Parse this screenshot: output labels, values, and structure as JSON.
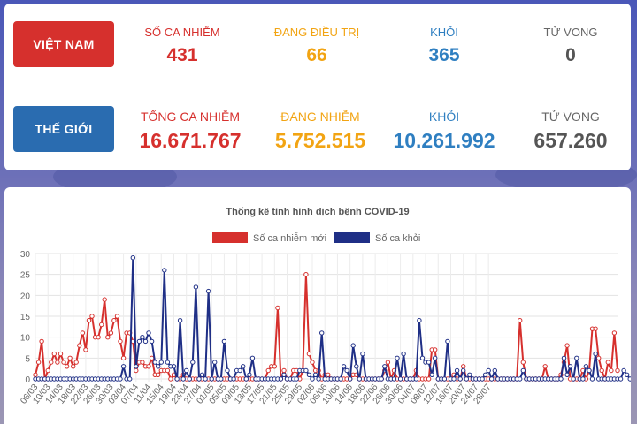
{
  "colors": {
    "new_cases": "#d6302d",
    "recovered": "#1f2f86",
    "brand_red": "#d6302d",
    "brand_blue": "#2a6cb0"
  },
  "vietnam": {
    "tag": "VIỆT NAM",
    "stats": [
      {
        "label": "SỐ CA NHIỄM",
        "value": "431"
      },
      {
        "label": "ĐANG ĐIỀU TRỊ",
        "value": "66"
      },
      {
        "label": "KHỎI",
        "value": "365"
      },
      {
        "label": "TỬ VONG",
        "value": "0"
      }
    ]
  },
  "world": {
    "tag": "THẾ GIỚI",
    "stats": [
      {
        "label": "TỔNG CA NHIỄM",
        "value": "16.671.767"
      },
      {
        "label": "ĐANG NHIỄM",
        "value": "5.752.515"
      },
      {
        "label": "KHỎI",
        "value": "10.261.992"
      },
      {
        "label": "TỬ VONG",
        "value": "657.260"
      }
    ]
  },
  "chart_data": {
    "type": "line",
    "title": "Thống kê tình hình dịch bệnh COVID-19",
    "ylim": [
      0,
      30
    ],
    "yticks": [
      0,
      5,
      10,
      15,
      20,
      25,
      30
    ],
    "grid": true,
    "legend_position": "top",
    "x_tick_labels": [
      "06/03",
      "10/03",
      "14/03",
      "18/03",
      "22/03",
      "26/03",
      "30/03",
      "03/04",
      "07/04",
      "11/04",
      "15/04",
      "19/04",
      "23/04",
      "27/04",
      "01/05",
      "05/05",
      "09/05",
      "13/05",
      "17/05",
      "21/05",
      "25/05",
      "29/05",
      "02/06",
      "06/06",
      "10/06",
      "14/06",
      "18/06",
      "22/06",
      "26/06",
      "30/06",
      "04/07",
      "08/07",
      "12/07",
      "16/07",
      "20/07",
      "24/07",
      "28/07"
    ],
    "x_start": "06/03",
    "series": [
      {
        "name": "Số ca nhiễm mới",
        "color": "#d6302d",
        "values": [
          1,
          4,
          9,
          0,
          2,
          4,
          6,
          4,
          6,
          4,
          3,
          5,
          3,
          4,
          8,
          11,
          7,
          14,
          15,
          10,
          10,
          13,
          19,
          10,
          11,
          14,
          15,
          9,
          5,
          11,
          11,
          9,
          2,
          4,
          4,
          3,
          3,
          5,
          1,
          1,
          2,
          2,
          2,
          0,
          1,
          0,
          0,
          1,
          0,
          0,
          0,
          0,
          0,
          0,
          0,
          0,
          0,
          0,
          0,
          0,
          0,
          0,
          0,
          0,
          0,
          0,
          0,
          0,
          0,
          0,
          0,
          0,
          0,
          0,
          2,
          3,
          3,
          17,
          0,
          2,
          0,
          0,
          2,
          2,
          0,
          2,
          25,
          6,
          4,
          2,
          2,
          0,
          1,
          1,
          0,
          0,
          0,
          0,
          0,
          0,
          0,
          1,
          1,
          0,
          0,
          0,
          0,
          0,
          0,
          0,
          0,
          2,
          4,
          0,
          2,
          0,
          0,
          0,
          0,
          0,
          0,
          2,
          0,
          0,
          0,
          0,
          7,
          7,
          0,
          0,
          0,
          0,
          0,
          1,
          0,
          0,
          3,
          0,
          0,
          0,
          0,
          0,
          0,
          0,
          0,
          0,
          0,
          0,
          0,
          0,
          0,
          0,
          0,
          0,
          14,
          4,
          0,
          0,
          0,
          0,
          0,
          0,
          3,
          0,
          0,
          0,
          0,
          1,
          4,
          8,
          0,
          0,
          0,
          0,
          2,
          0,
          2,
          12,
          12,
          5,
          2,
          0,
          4,
          2,
          11,
          2
        ]
      },
      {
        "name": "Số ca khỏi",
        "color": "#1f2f86",
        "values": [
          0,
          0,
          0,
          0,
          0,
          0,
          0,
          0,
          0,
          0,
          0,
          0,
          0,
          0,
          0,
          0,
          0,
          0,
          0,
          0,
          0,
          0,
          0,
          0,
          0,
          0,
          0,
          0,
          3,
          0,
          0,
          29,
          3,
          9,
          10,
          9,
          11,
          9,
          4,
          3,
          4,
          26,
          4,
          3,
          3,
          0,
          14,
          0,
          2,
          0,
          4,
          22,
          0,
          1,
          0,
          21,
          0,
          4,
          0,
          0,
          9,
          2,
          0,
          0,
          2,
          2,
          3,
          0,
          1,
          5,
          0,
          0,
          0,
          0,
          0,
          0,
          0,
          0,
          0,
          1,
          0,
          0,
          0,
          0,
          2,
          2,
          2,
          1,
          0,
          1,
          0,
          11,
          0,
          0,
          0,
          0,
          0,
          0,
          3,
          2,
          0,
          8,
          3,
          0,
          6,
          0,
          0,
          0,
          0,
          0,
          0,
          3,
          0,
          0,
          0,
          5,
          0,
          6,
          0,
          0,
          0,
          0,
          14,
          5,
          4,
          4,
          1,
          5,
          0,
          0,
          0,
          9,
          0,
          0,
          2,
          0,
          2,
          0,
          1,
          0,
          0,
          0,
          0,
          1,
          2,
          0,
          2,
          0,
          0,
          0,
          0,
          0,
          0,
          0,
          0,
          2,
          0,
          0,
          0,
          0,
          0,
          0,
          0,
          0,
          0,
          0,
          0,
          0,
          5,
          1,
          3,
          0,
          5,
          0,
          0,
          3,
          2,
          0,
          6,
          0,
          0,
          0,
          0,
          0,
          0,
          0,
          0,
          2,
          1,
          0,
          1,
          0,
          0,
          0,
          0,
          0,
          0,
          0
        ]
      }
    ]
  }
}
